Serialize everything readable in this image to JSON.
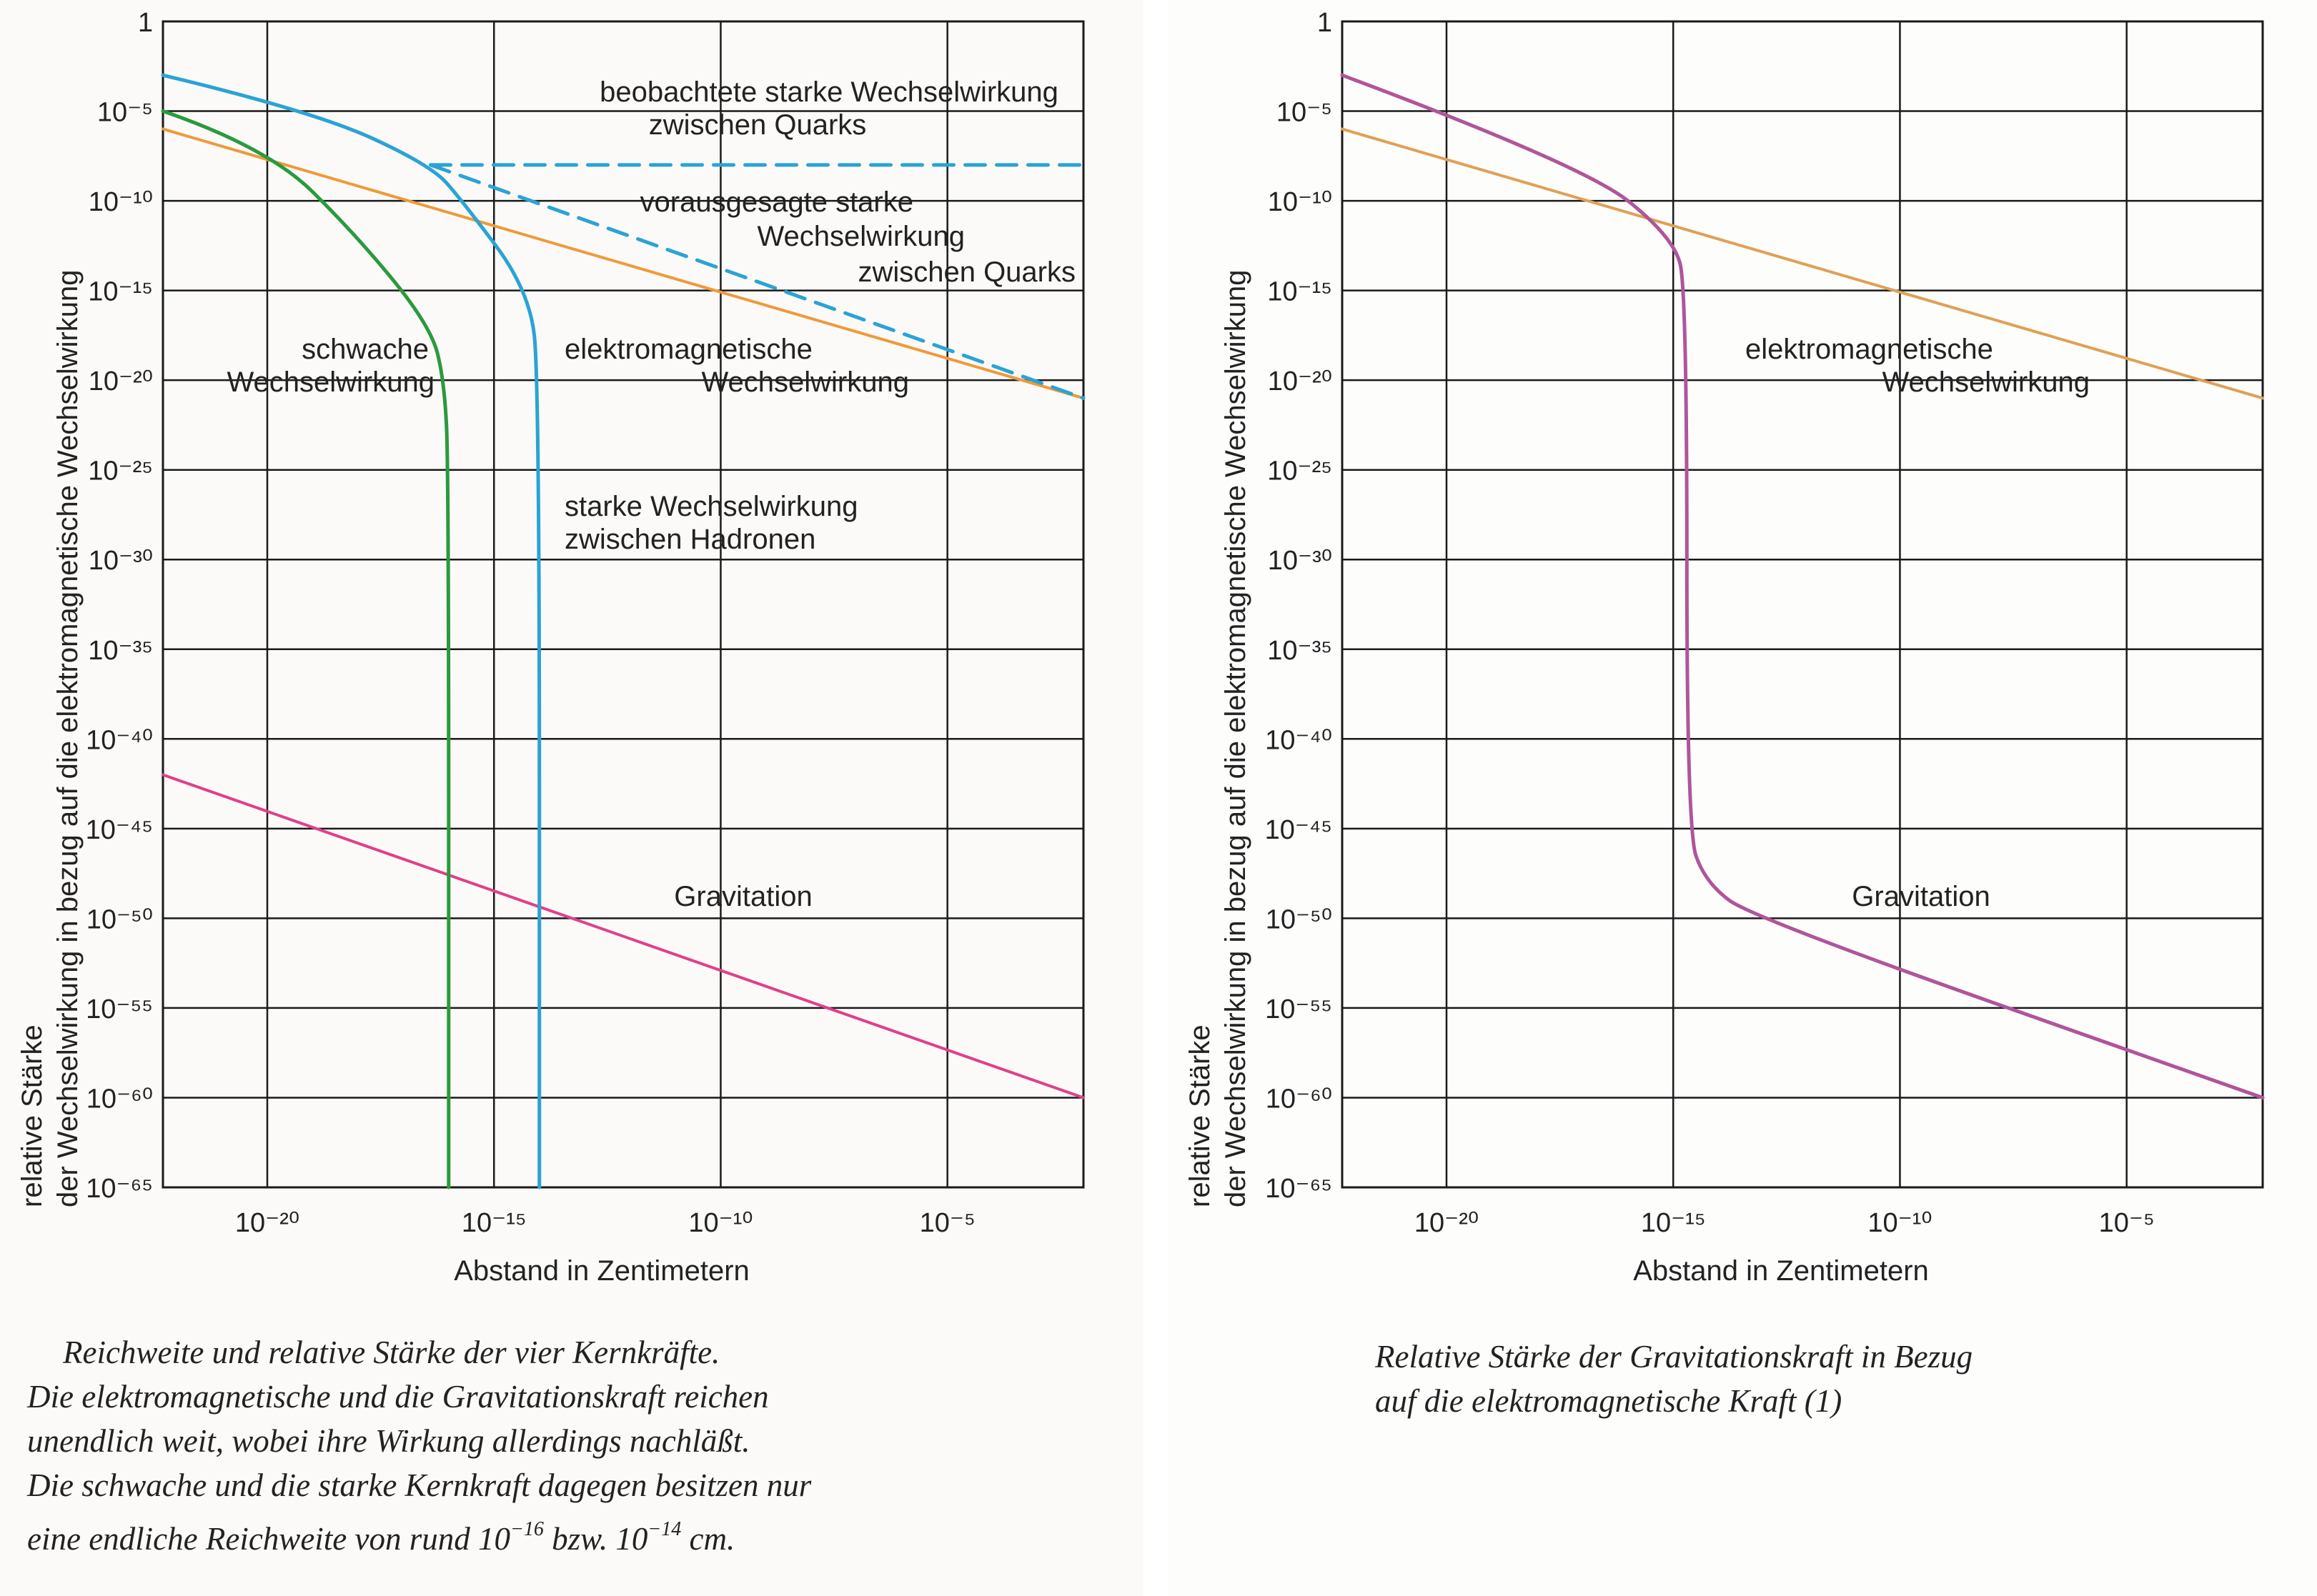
{
  "charts": {
    "left": {
      "y_tick_labels": [
        "1",
        "10⁻⁵",
        "10⁻¹⁰",
        "10⁻¹⁵",
        "10⁻²⁰",
        "10⁻²⁵",
        "10⁻³⁰",
        "10⁻³⁵",
        "10⁻⁴⁰",
        "10⁻⁴⁵",
        "10⁻⁵⁰",
        "10⁻⁵⁵",
        "10⁻⁶⁰",
        "10⁻⁶⁵"
      ],
      "x_tick_labels": [
        "10⁻²⁰",
        "10⁻¹⁵",
        "10⁻¹⁰",
        "10⁻⁵"
      ],
      "xlabel": "Abstand in Zentimetern",
      "ylabel_line1": "relative Stärke",
      "ylabel_line2": "der Wechselwirkung in bezug  auf die elektromagnetische Wechselwirkung",
      "annotations": {
        "observed_quarks_1": "beobachtete starke Wechselwirkung",
        "observed_quarks_2": "zwischen Quarks",
        "predicted_1": "vorausgesagte starke",
        "predicted_2": "Wechselwirkung",
        "predicted_3": "zwischen Quarks",
        "weak_1": "schwache",
        "weak_2": "Wechselwirkung",
        "em_1": "elektromagnetische",
        "em_2": "Wechselwirkung",
        "hadrons_1": "starke Wechselwirkung",
        "hadrons_2": "zwischen Hadronen",
        "gravity": "Gravitation"
      }
    },
    "right": {
      "y_tick_labels": [
        "1",
        "10⁻⁵",
        "10⁻¹⁰",
        "10⁻¹⁵",
        "10⁻²⁰",
        "10⁻²⁵",
        "10⁻³⁰",
        "10⁻³⁵",
        "10⁻⁴⁰",
        "10⁻⁴⁵",
        "10⁻⁵⁰",
        "10⁻⁵⁵",
        "10⁻⁶⁰",
        "10⁻⁶⁵"
      ],
      "x_tick_labels": [
        "10⁻²⁰",
        "10⁻¹⁵",
        "10⁻¹⁰",
        "10⁻⁵"
      ],
      "xlabel": "Abstand in Zentimetern",
      "ylabel_line1": "relative Stärke",
      "ylabel_line2": "der Wechselwirkung in bezug  auf die elektromagnetische Wechselwirkung",
      "annotations": {
        "em_1": "elektromagnetische",
        "em_2": "Wechselwirkung",
        "gravity": "Gravitation"
      }
    }
  },
  "captions": {
    "left": [
      "Reichweite und relative Stärke der vier Kernkräfte.",
      "Die elektromagnetische und die Gravitationskraft reichen",
      "unendlich weit, wobei ihre Wirkung allerdings nachläßt.",
      "Die schwache und die starke Kernkraft dagegen besitzen nur",
      "eine endliche Reichweite von rund 10",
      "bzw. 10",
      "cm."
    ],
    "left_exp_1": "−16",
    "left_exp_2": "−14",
    "right": [
      "Relative Stärke der Gravitationskraft in Bezug",
      "auf die elektromagnetische Kraft  (1)"
    ]
  },
  "colors": {
    "grid": "#1a1a1a",
    "weak": "#2a9a3c",
    "strong_hadrons": "#2aa3d6",
    "quarks": "#2aa3d6",
    "electromagnetic": "#ee9a3a",
    "gravitation_left": "#e0408a",
    "gravitation_right": "#b0559a",
    "em_right": "#e0a055"
  },
  "chart_data": [
    {
      "type": "line",
      "x_scale": "log",
      "y_scale": "log",
      "xlim": [
        5e-23,
        0.01
      ],
      "ylim": [
        1e-65,
        1
      ],
      "xlabel": "Abstand in Zentimetern",
      "series": [
        {
          "name": "elektromagnetische Wechselwirkung",
          "x": [
            5e-23,
            0.01
          ],
          "y": [
            1e-06,
            1e-21
          ]
        },
        {
          "name": "Gravitation",
          "x": [
            5e-23,
            0.01
          ],
          "y": [
            1e-42,
            1e-60
          ]
        },
        {
          "name": "schwache Wechselwirkung",
          "x": [
            5e-23,
            1e-20,
            1e-18,
            4e-17,
            8e-17,
            1e-16,
            1e-16
          ],
          "y": [
            1e-05,
            1e-07,
            1e-12,
            1e-17,
            1e-20,
            1e-25,
            1e-65
          ]
        },
        {
          "name": "starke Wechselwirkung zwischen Hadronen",
          "x": [
            5e-23,
            1e-19,
            4e-17,
            2e-16,
            6e-15,
            1e-14,
            1e-14
          ],
          "y": [
            0.001,
            1e-05,
            1e-08,
            1e-10,
            1e-15,
            1e-20,
            1e-65
          ]
        },
        {
          "name": "beobachtete starke Wechselwirkung zwischen Quarks",
          "x": [
            4e-17,
            0.01
          ],
          "y": [
            1e-08,
            1e-08
          ]
        },
        {
          "name": "vorausgesagte starke Wechselwirkung zwischen Quarks",
          "x": [
            4e-17,
            0.01
          ],
          "y": [
            1e-08,
            1e-21
          ]
        }
      ]
    },
    {
      "type": "line",
      "x_scale": "log",
      "y_scale": "log",
      "xlim": [
        5e-23,
        0.01
      ],
      "ylim": [
        1e-65,
        1
      ],
      "xlabel": "Abstand in Zentimetern",
      "series": [
        {
          "name": "elektromagnetische Wechselwirkung",
          "x": [
            5e-23,
            0.01
          ],
          "y": [
            1e-06,
            1e-21
          ]
        },
        {
          "name": "Gravitation",
          "x": [
            5e-23,
            1e-17,
            1e-15,
            2e-15,
            2e-15,
            5e-15,
            6e-14,
            0.01
          ],
          "y": [
            0.001,
            1e-08,
            1e-12,
            1e-15,
            1e-45,
            1e-48,
            1e-50,
            1e-60
          ]
        }
      ]
    }
  ]
}
